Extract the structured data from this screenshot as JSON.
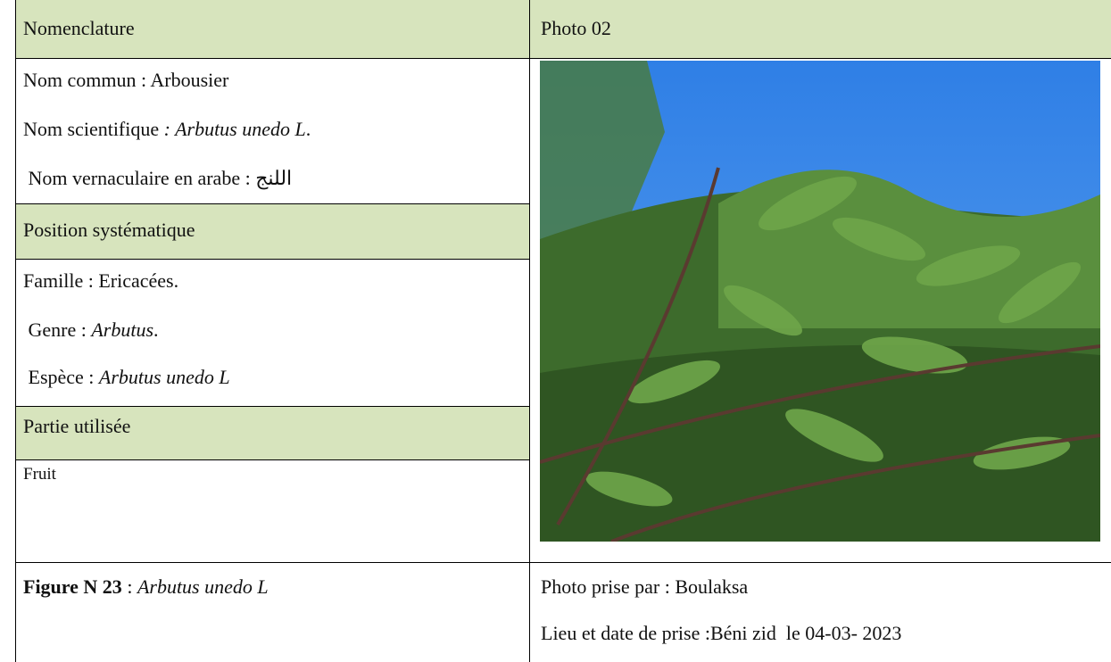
{
  "left": {
    "sections": [
      {
        "heading": "Nomenclature",
        "lines": [
          [
            {
              "text": "Nom commun : Arbousier",
              "style": "normal"
            }
          ],
          [
            {
              "text": "Nom scientifique ",
              "style": "normal"
            },
            {
              "text": ": Arbutus unedo L",
              "style": "italic"
            },
            {
              "text": ".",
              "style": "normal"
            }
          ],
          [
            {
              "text": " Nom vernaculaire en arabe : اللنج",
              "style": "normal"
            }
          ]
        ]
      },
      {
        "heading": "Position systématique",
        "lines": [
          [
            {
              "text": "Famille : Ericacées.",
              "style": "normal"
            }
          ],
          [
            {
              "text": " Genre : ",
              "style": "normal"
            },
            {
              "text": "Arbutus",
              "style": "italic"
            },
            {
              "text": ".",
              "style": "normal"
            }
          ],
          [
            {
              "text": " Espèce : ",
              "style": "normal"
            },
            {
              "text": "Arbutus unedo L",
              "style": "italic"
            }
          ]
        ]
      },
      {
        "heading": "Partie utilisée",
        "lines": [
          [
            {
              "text": "Fruit",
              "style": "normal"
            }
          ]
        ]
      }
    ]
  },
  "right": {
    "heading": "Photo 02"
  },
  "footer": {
    "left": [
      {
        "text": "Figure N 23",
        "style": "bold"
      },
      {
        "text": " : ",
        "style": "normal"
      },
      {
        "text": "Arbutus unedo L",
        "style": "italic"
      }
    ],
    "right": [
      [
        {
          "text": "Photo prise par : Boulaksa",
          "style": "normal"
        }
      ],
      [
        {
          "text": "Lieu et date de prise :Béni zid  le 04-03- 2023",
          "style": "normal"
        }
      ]
    ]
  }
}
